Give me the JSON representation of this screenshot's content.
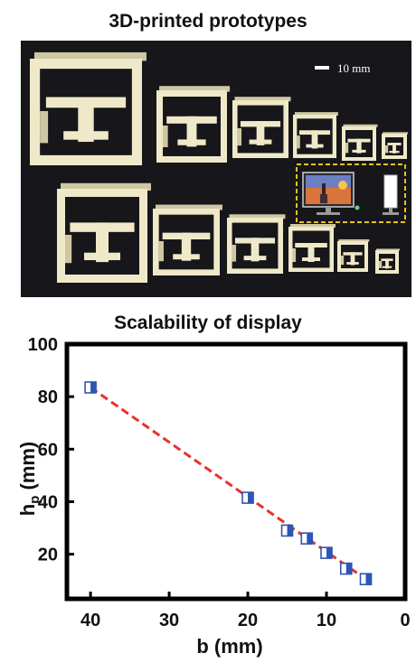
{
  "photo_panel": {
    "title": "3D-printed prototypes",
    "scale_bar_label": "10 mm",
    "inset_icons": [
      "monitor-icon",
      "tower-display-icon"
    ],
    "colors": {
      "background": "#17161a",
      "prototype": "#efe9c9",
      "inset_border": "#e6c419"
    }
  },
  "chart_data": {
    "type": "scatter",
    "title": "Scalability of display",
    "xlabel": "b (mm)",
    "ylabel": "h",
    "ylabel_subscript": "p",
    "ylabel_unit": " (mm)",
    "xlim": [
      0,
      43
    ],
    "x_reversed": true,
    "ylim": [
      3,
      100
    ],
    "xticks": [
      40,
      30,
      20,
      10,
      0
    ],
    "yticks": [
      20,
      40,
      60,
      80,
      100
    ],
    "series": [
      {
        "marker": "half-filled-square",
        "color": "#2d55b5",
        "x": [
          40,
          20,
          15,
          12.5,
          10,
          7.5,
          5
        ],
        "y": [
          83.5,
          41.5,
          29,
          26,
          20.5,
          14.5,
          10.5
        ]
      }
    ],
    "fit_line": {
      "style": "dashed",
      "color": "#e8322a",
      "x": [
        40,
        5
      ],
      "y": [
        83.5,
        10.5
      ]
    }
  }
}
